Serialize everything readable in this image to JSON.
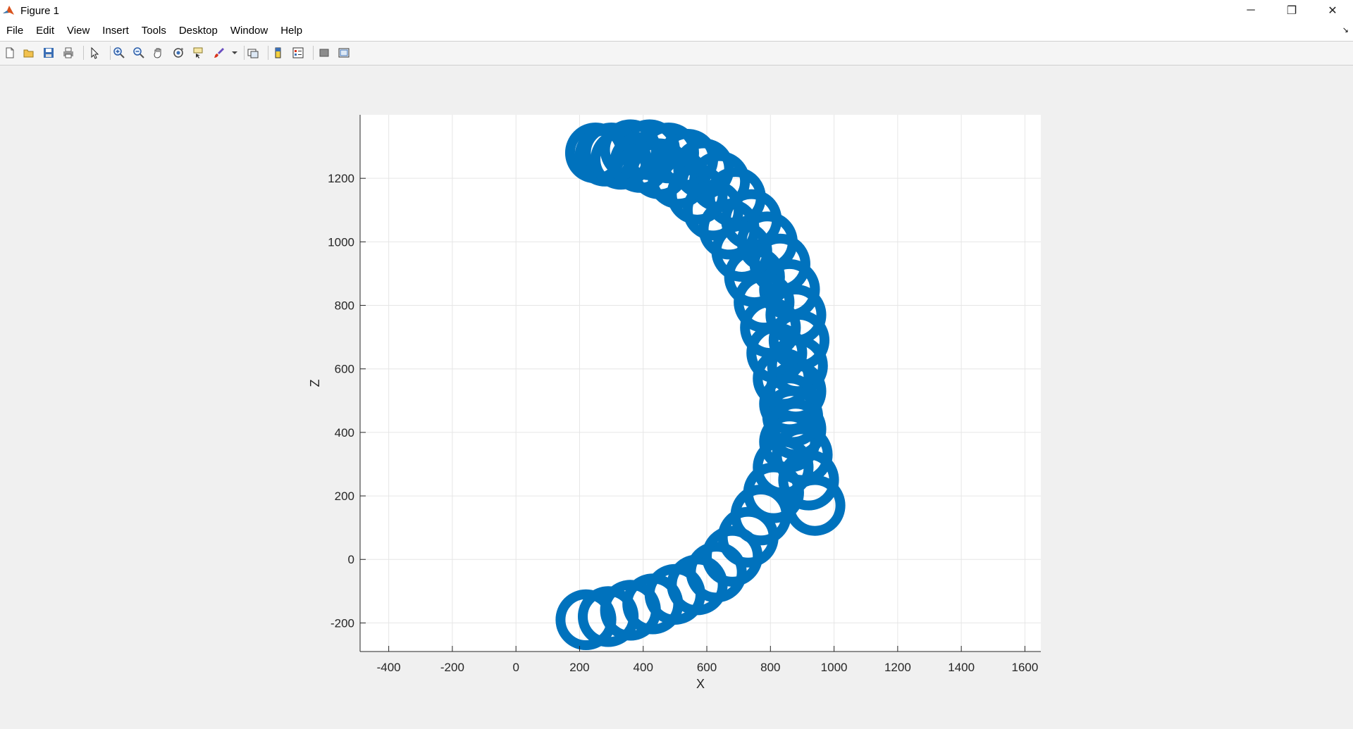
{
  "window": {
    "title": "Figure 1",
    "controls": {
      "minimize": "─",
      "restore": "❐",
      "close": "✕"
    }
  },
  "menu": {
    "items": [
      "File",
      "Edit",
      "View",
      "Insert",
      "Tools",
      "Desktop",
      "Window",
      "Help"
    ],
    "dock_arrow": "↘"
  },
  "toolbar": {
    "icons": [
      "new-figure-icon",
      "open-file-icon",
      "save-icon",
      "print-icon",
      "select-pointer-icon",
      "zoom-in-icon",
      "zoom-out-icon",
      "pan-hand-icon",
      "rotate-3d-icon",
      "data-cursor-icon",
      "brush-icon",
      "link-plot-icon",
      "insert-colorbar-icon",
      "insert-legend-icon",
      "hide-plot-tools-icon",
      "show-plot-tools-icon"
    ]
  },
  "colors": {
    "series": "#0072BD",
    "background": "#f0f0f0",
    "axes_bg": "#ffffff",
    "grid": "#e6e6e6"
  },
  "chart_data": {
    "type": "scatter",
    "title": "",
    "xlabel": "X",
    "ylabel": "Z",
    "xlim": [
      -490,
      1650
    ],
    "ylim": [
      -290,
      1400
    ],
    "xticks": [
      -400,
      -200,
      0,
      200,
      400,
      600,
      800,
      1000,
      1200,
      1400,
      1600
    ],
    "yticks": [
      -200,
      0,
      200,
      400,
      600,
      800,
      1000,
      1200
    ],
    "grid": true,
    "marker": "o",
    "marker_size": 80,
    "marker_face": "none",
    "series": [
      {
        "x": [
          220,
          290,
          360,
          430,
          500,
          570,
          630,
          680,
          730,
          770,
          810,
          840,
          860,
          870,
          880,
          885,
          890,
          880,
          860,
          830,
          790,
          740,
          690,
          640,
          590,
          540,
          480,
          420,
          360,
          300,
          250,
          280,
          330,
          390,
          450,
          510,
          570,
          620,
          670,
          710,
          750,
          780,
          800,
          820,
          840,
          860,
          880,
          900,
          920,
          940
        ],
        "y": [
          -190,
          -180,
          -160,
          -140,
          -110,
          -80,
          -40,
          10,
          70,
          140,
          210,
          290,
          370,
          450,
          530,
          610,
          690,
          770,
          850,
          930,
          1000,
          1070,
          1140,
          1190,
          1230,
          1260,
          1280,
          1290,
          1290,
          1280,
          1280,
          1270,
          1260,
          1250,
          1230,
          1200,
          1150,
          1100,
          1040,
          970,
          890,
          810,
          730,
          650,
          570,
          490,
          410,
          330,
          250,
          170
        ]
      }
    ]
  }
}
